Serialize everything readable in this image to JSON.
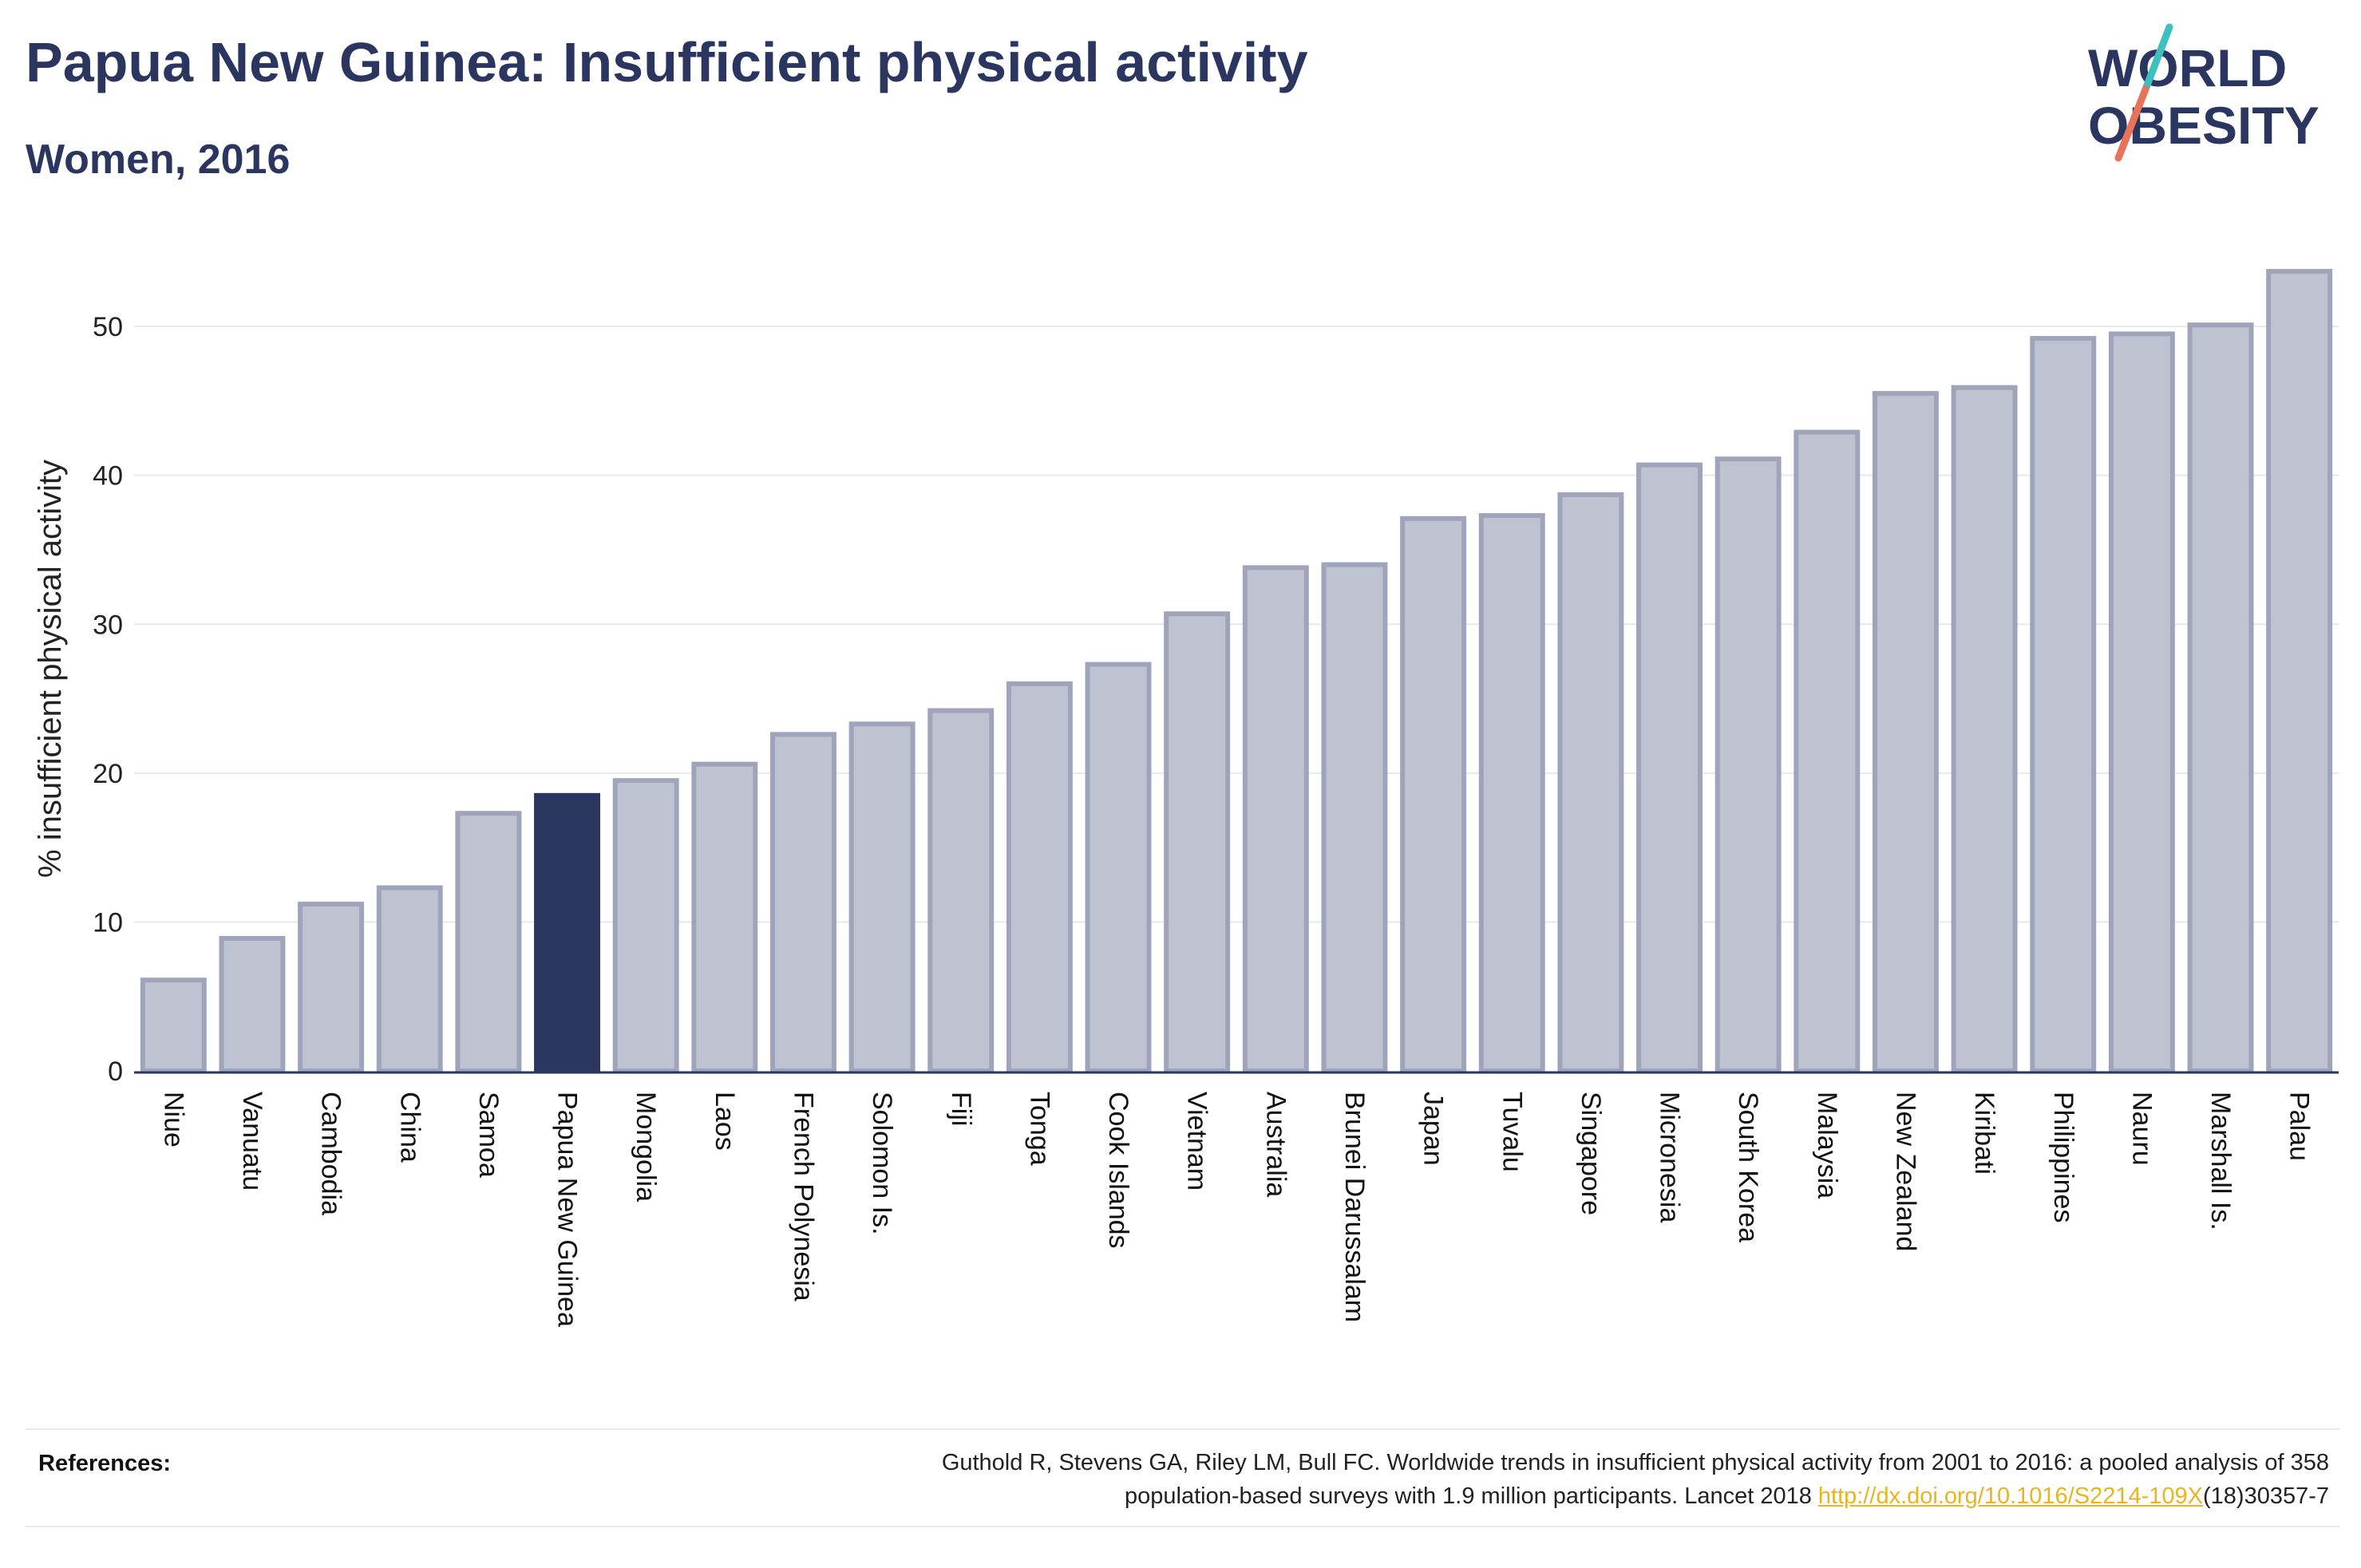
{
  "header": {
    "title": "Papua New Guinea: Insufficient physical activity",
    "subtitle": "Women, 2016"
  },
  "logo": {
    "line1": "WORLD",
    "line2": "OBESITY",
    "text_color": "#2b3660",
    "slash_colors": [
      "#3fc0c0",
      "#e8735a"
    ]
  },
  "colors": {
    "bar": "#bfc2d0",
    "bar_outline": "#9fa4bb",
    "highlight": "#2b3660",
    "grid": "#e8e8ec",
    "axis": "#2b3660"
  },
  "chart_data": {
    "type": "bar",
    "ylabel": "% insufficient physical activity",
    "ylim": [
      0,
      55
    ],
    "yticks": [
      0,
      10,
      20,
      30,
      40,
      50
    ],
    "grid": true,
    "highlight": "Papua New Guinea",
    "categories": [
      "Niue",
      "Vanuatu",
      "Cambodia",
      "China",
      "Samoa",
      "Papua New Guinea",
      "Mongolia",
      "Laos",
      "French Polynesia",
      "Solomon Is.",
      "Fiji",
      "Tonga",
      "Cook Islands",
      "Vietnam",
      "Australia",
      "Brunei Darussalam",
      "Japan",
      "Tuvalu",
      "Singapore",
      "Micronesia",
      "South Korea",
      "Malaysia",
      "New Zealand",
      "Kiribati",
      "Philippines",
      "Nauru",
      "Marshall Is.",
      "Palau"
    ],
    "values": [
      6.1,
      8.9,
      11.2,
      12.3,
      17.3,
      18.5,
      19.5,
      20.6,
      22.6,
      23.3,
      24.2,
      26.0,
      27.3,
      30.7,
      33.8,
      34.0,
      37.1,
      37.3,
      38.7,
      40.7,
      41.1,
      42.9,
      45.5,
      45.9,
      49.2,
      49.5,
      50.1,
      53.7
    ]
  },
  "references": {
    "heading": "References:",
    "text_line1": "Guthold R, Stevens GA, Riley LM, Bull FC. Worldwide trends in insufficient physical activity from 2001 to 2016: a pooled analysis of 358",
    "text_line2_before": "population-based surveys with 1.9 million participants. Lancet 2018 ",
    "link": "http://dx.doi.org/10.1016/S2214-109X",
    "text_line2_after": "(18)30357-7"
  }
}
